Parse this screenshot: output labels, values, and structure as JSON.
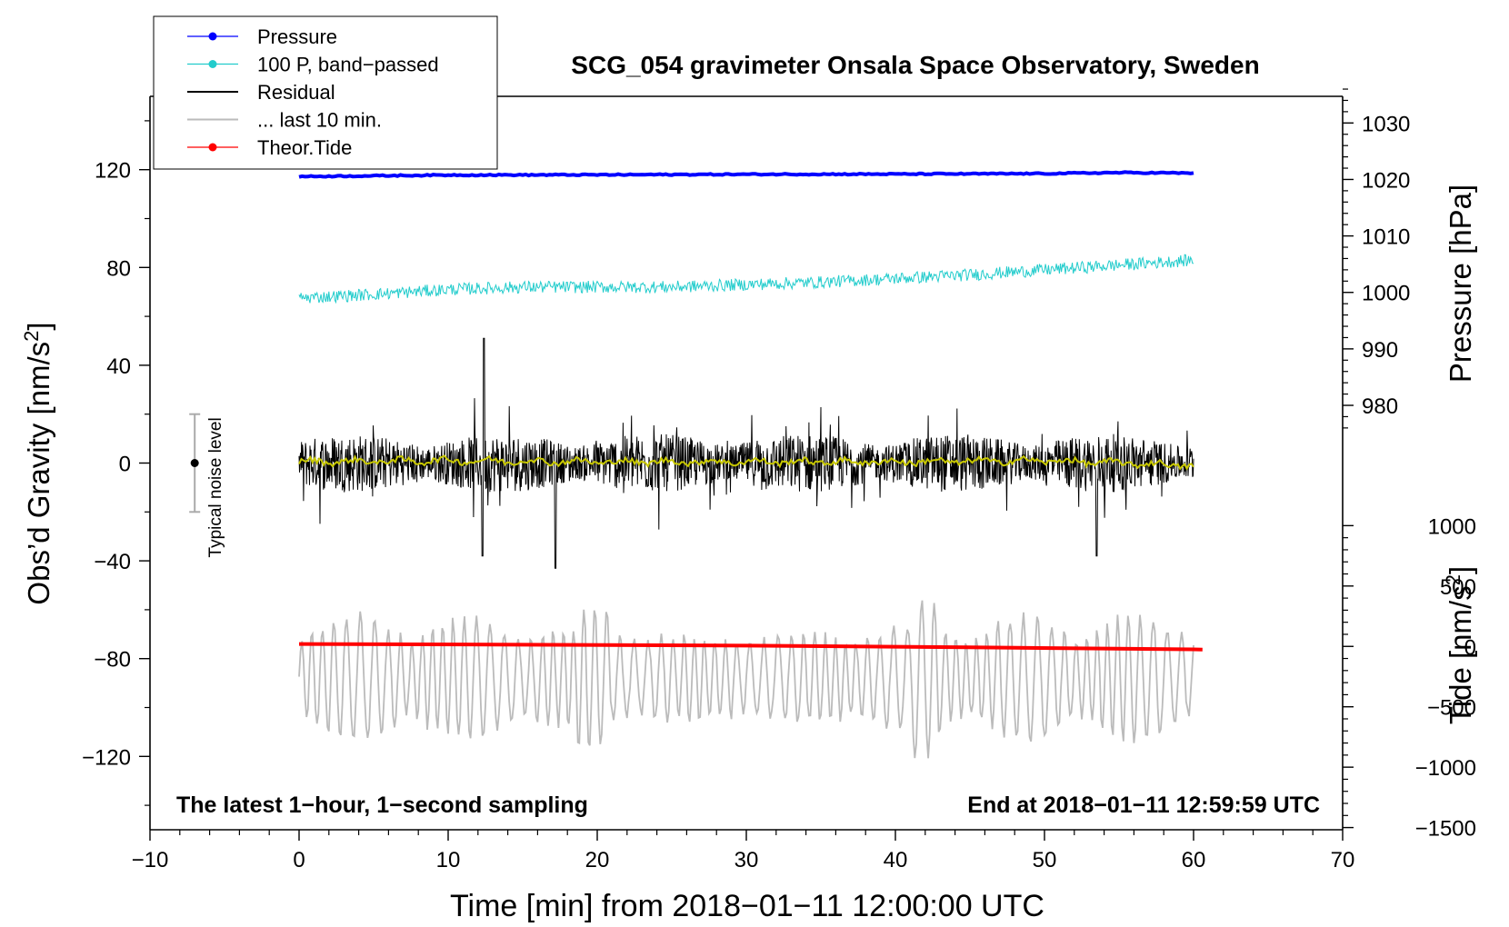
{
  "chart_data": {
    "type": "line",
    "title": "SCG_054 gravimeter Onsala Space Observatory, Sweden",
    "xlabel": "Time [min] from 2018−01−11 12:00:00 UTC",
    "ylabel_left": "Obs’d Gravity [nm/s",
    "ylabel_left_sup": "2",
    "ylabel_left_close": "]",
    "ylabel_right_pressure": "Pressure [hPa]",
    "ylabel_right_tide": "Tide [nm/s",
    "ylabel_right_tide_sup": "2",
    "ylabel_right_tide_close": "]",
    "xlim": [
      -10,
      70
    ],
    "ylim_left": [
      -150,
      150
    ],
    "x_ticks": [
      {
        "v": -10,
        "label": "−10"
      },
      {
        "v": 0,
        "label": "0"
      },
      {
        "v": 10,
        "label": "10"
      },
      {
        "v": 20,
        "label": "20"
      },
      {
        "v": 30,
        "label": "30"
      },
      {
        "v": 40,
        "label": "40"
      },
      {
        "v": 50,
        "label": "50"
      },
      {
        "v": 60,
        "label": "60"
      },
      {
        "v": 70,
        "label": "70"
      }
    ],
    "y_left_ticks": [
      {
        "v": 120,
        "label": "120"
      },
      {
        "v": 80,
        "label": "80"
      },
      {
        "v": 40,
        "label": "40"
      },
      {
        "v": 0,
        "label": "0"
      },
      {
        "v": -40,
        "label": "−40"
      },
      {
        "v": -80,
        "label": "−80"
      },
      {
        "v": -120,
        "label": "−120"
      }
    ],
    "pressure_axis": {
      "ticks": [
        {
          "v": 1030,
          "label": "1030"
        },
        {
          "v": 1020,
          "label": "1020"
        },
        {
          "v": 1010,
          "label": "1010"
        },
        {
          "v": 1000,
          "label": "1000"
        },
        {
          "v": 990,
          "label": "990"
        },
        {
          "v": 980,
          "label": "980"
        }
      ],
      "gravity_equivalent": {
        "hpa_1020": 116,
        "hpa_1000": 69.8
      }
    },
    "tide_axis": {
      "ticks": [
        {
          "v": 1000,
          "label": "1000"
        },
        {
          "v": 500,
          "label": "500"
        },
        {
          "v": 0,
          "label": "0"
        },
        {
          "v": -500,
          "label": "−500"
        },
        {
          "v": -1000,
          "label": "−1000"
        },
        {
          "v": -1500,
          "label": "−1500"
        }
      ],
      "gravity_equivalent": {
        "nms2_0": -75,
        "nms2_1000": -25.6
      }
    },
    "legend": [
      {
        "label": "Pressure",
        "color": "#0000ff",
        "style": "line-dot"
      },
      {
        "label": "100 P, band−passed",
        "color": "#22cccc",
        "style": "line-dot"
      },
      {
        "label": "Residual",
        "color": "#000000",
        "style": "line"
      },
      {
        "label": "... last 10 min.",
        "color": "#bbbbbb",
        "style": "line"
      },
      {
        "label": "Theor.Tide",
        "color": "#ff0000",
        "style": "line-dot"
      }
    ],
    "legend_position": "top-left",
    "series": [
      {
        "name": "Pressure",
        "color": "#0000ff",
        "x": [
          0,
          10,
          20,
          30,
          40,
          50,
          55,
          60
        ],
        "y": [
          117.2,
          117.8,
          117.9,
          118.1,
          118.2,
          118.4,
          118.8,
          118.6
        ]
      },
      {
        "name": "100 P, band−passed",
        "color": "#22cccc",
        "x": [
          0,
          5,
          10,
          15,
          20,
          25,
          30,
          35,
          40,
          45,
          50,
          55,
          60
        ],
        "y": [
          67.5,
          69,
          71,
          72,
          72,
          72,
          73,
          74,
          75.5,
          77,
          79,
          81,
          83
        ],
        "noise_amplitude": 2.5
      },
      {
        "name": "Residual",
        "color": "#000000",
        "x": [
          0,
          60
        ],
        "y": [
          0,
          0
        ],
        "noise_amplitude": 12,
        "spike_max": 51,
        "spike_min": -43
      },
      {
        "name": "Residual smoothed",
        "color": "#c8c800",
        "x": [
          0,
          10,
          20,
          30,
          40,
          50,
          60
        ],
        "y": [
          0.5,
          1,
          0.5,
          0.5,
          0.5,
          1,
          -1
        ]
      },
      {
        "name": "... last 10 min.",
        "color": "#bbbbbb",
        "x": [
          0,
          60
        ],
        "y_center": [
          -88,
          -88
        ],
        "amplitude_range": [
          -130,
          -55
        ]
      },
      {
        "name": "Theor.Tide",
        "color": "#ff0000",
        "x": [
          0,
          15,
          30,
          45,
          60
        ],
        "y": [
          -74,
          -74.3,
          -74.7,
          -75.4,
          -76.2
        ]
      }
    ],
    "noise_marker": {
      "x": -7,
      "y": 0,
      "low": -20,
      "high": 20,
      "label": "Typical noise level"
    },
    "annotation_left": "The latest 1−hour, 1−second sampling",
    "annotation_right": "End at 2018−01−11 12:59:59 UTC"
  }
}
